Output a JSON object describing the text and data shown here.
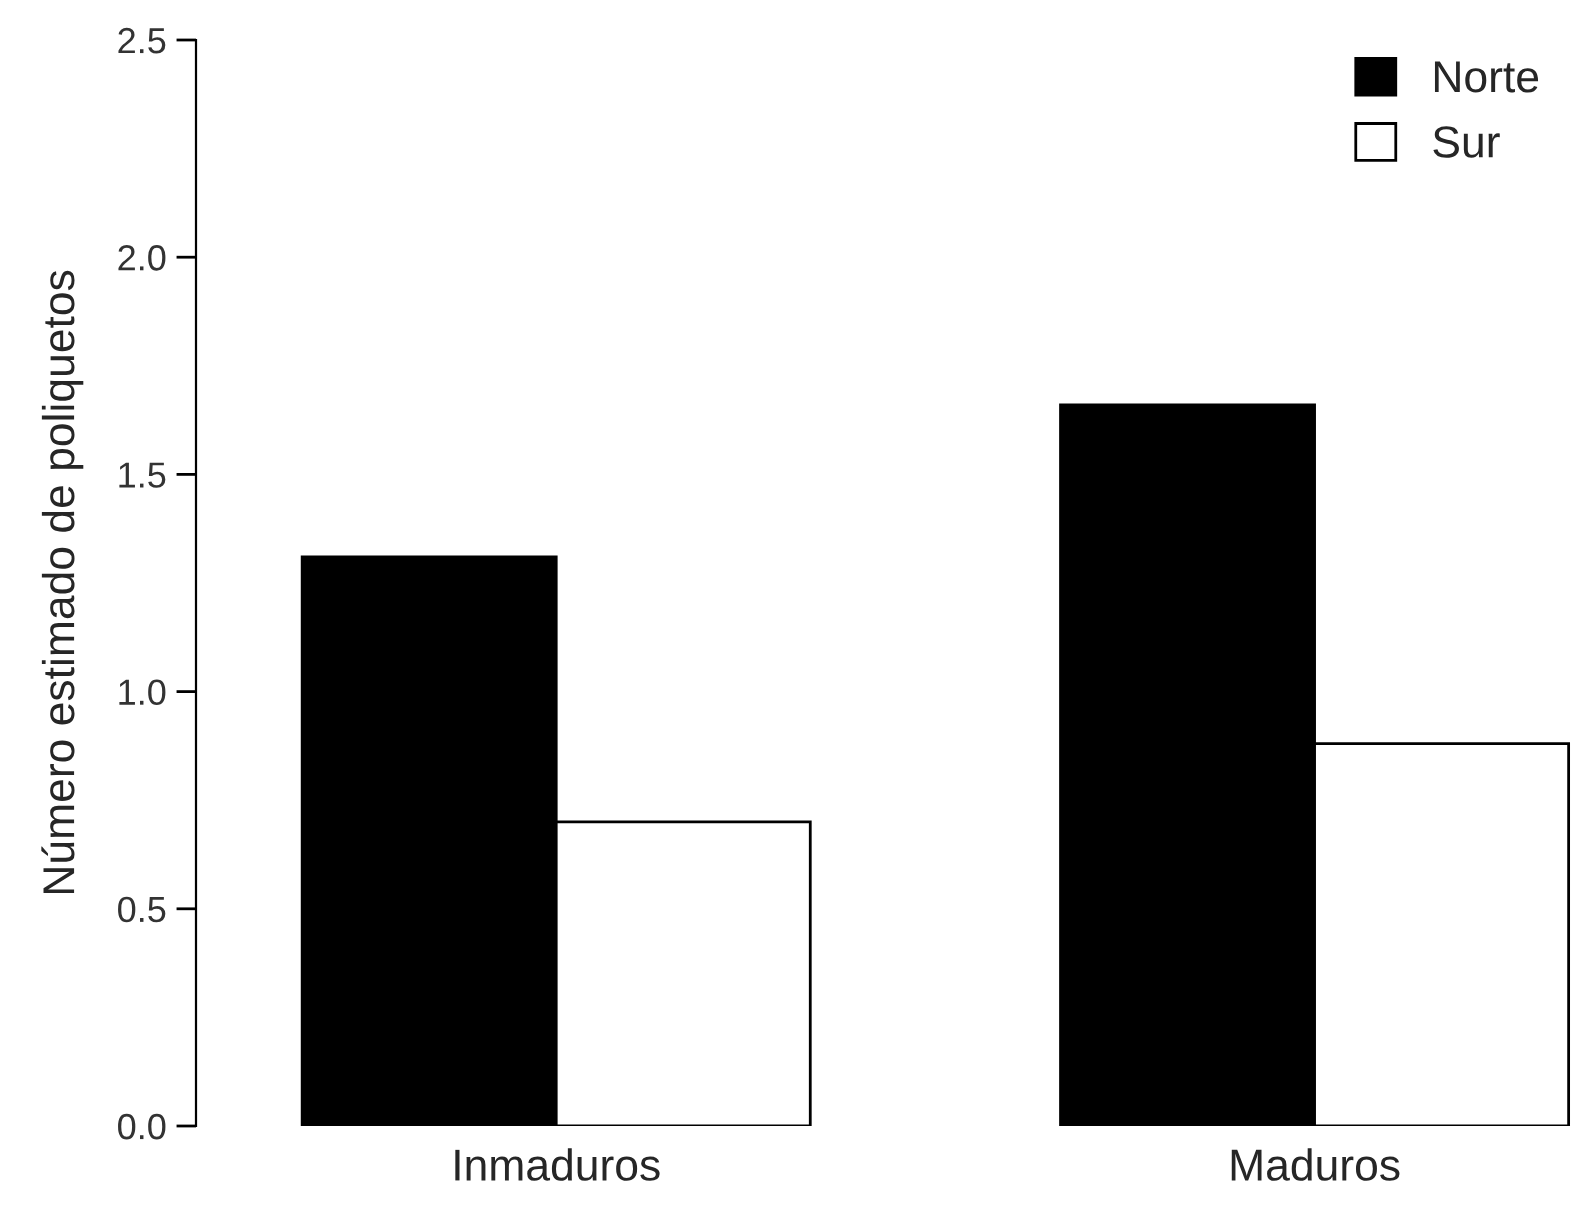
{
  "chart_data": {
    "type": "bar",
    "ylabel": "Número estimado de poliquetos",
    "categories": [
      "Inmaduros",
      "Maduros"
    ],
    "series": [
      {
        "name": "Norte",
        "color": "#000000",
        "values": [
          1.31,
          1.66
        ]
      },
      {
        "name": "Sur",
        "color": "#ffffff",
        "values": [
          0.7,
          0.88
        ]
      }
    ],
    "ylim": [
      0,
      2.5
    ],
    "yticks": [
      {
        "value": 0,
        "label": "0.0"
      },
      {
        "value": 0.5,
        "label": "0.5"
      },
      {
        "value": 1,
        "label": "1.0"
      },
      {
        "value": 1.5,
        "label": "1.5"
      },
      {
        "value": 2,
        "label": "2.0"
      },
      {
        "value": 2.5,
        "label": "2.5"
      }
    ],
    "grid": false,
    "legend": "top right"
  }
}
